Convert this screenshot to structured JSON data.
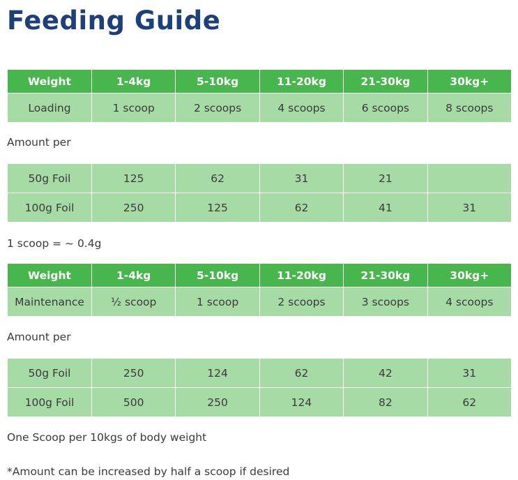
{
  "title": "Feeding Guide",
  "loading": {
    "header": [
      "Weight",
      "1-4kg",
      "5-10kg",
      "11-20kg",
      "21-30kg",
      "30kg+"
    ],
    "row": [
      "Loading",
      "1 scoop",
      "2 scoops",
      "4 scoops",
      "6 scoops",
      "8 scoops"
    ]
  },
  "loading_amount_label": "Amount per",
  "loading_amounts": [
    [
      "50g Foil",
      "125",
      "62",
      "31",
      "21",
      ""
    ],
    [
      "100g Foil",
      "250",
      "125",
      "62",
      "41",
      "31"
    ]
  ],
  "scoop_note": "1 scoop = ~ 0.4g",
  "maintenance": {
    "header": [
      "Weight",
      "1-4kg",
      "5-10kg",
      "11-20kg",
      "21-30kg",
      "30kg+"
    ],
    "row": [
      "Maintenance",
      "½ scoop",
      "1 scoop",
      "2 scoops",
      "3 scoops",
      "4 scoops"
    ]
  },
  "maintenance_amount_label": "Amount per",
  "maintenance_amounts": [
    [
      "50g Foil",
      "250",
      "124",
      "62",
      "42",
      "31"
    ],
    [
      "100g Foil",
      "500",
      "250",
      "124",
      "82",
      "62"
    ]
  ],
  "scoop_rule": "One Scoop per 10kgs of body weight",
  "footnote": "*Amount can be increased by half a scoop if desired",
  "colors": {
    "title": "#1d3f7a",
    "header_bg": "#47b64c",
    "cell_bg": "#a6dba6"
  }
}
